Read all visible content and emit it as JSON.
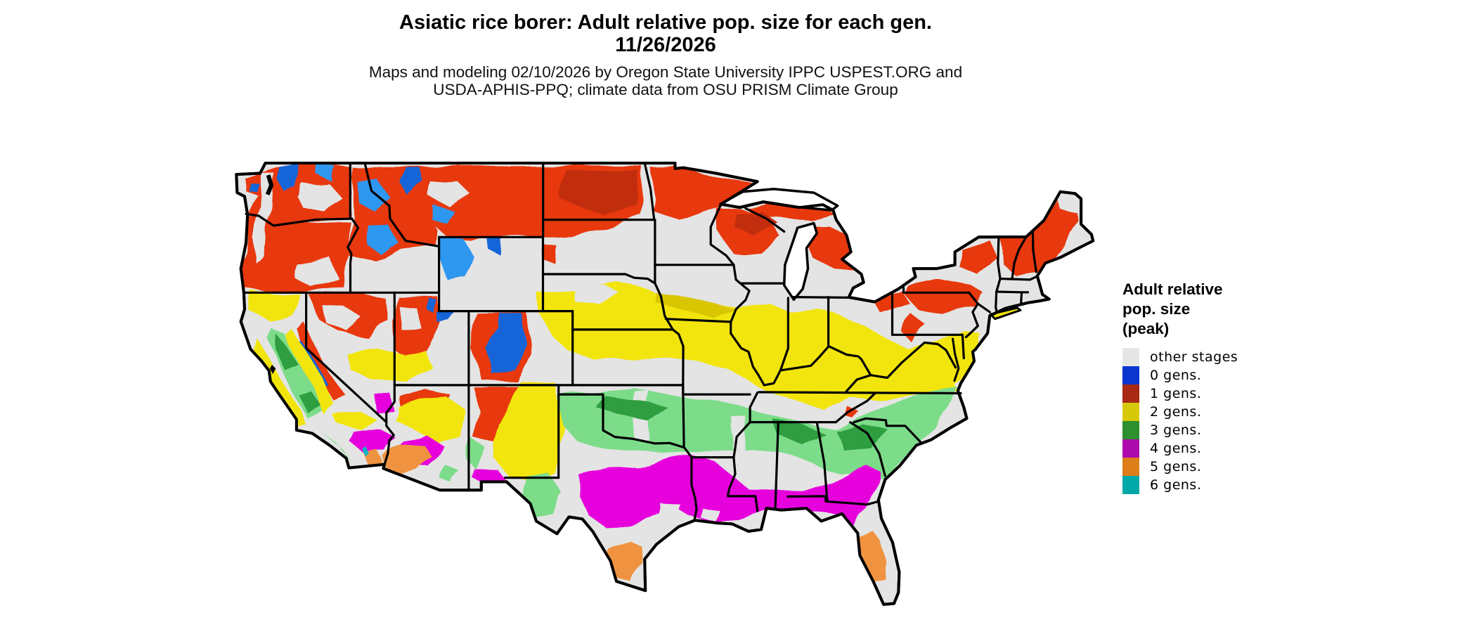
{
  "title": {
    "line1": "Asiatic rice borer: Adult relative pop. size for each gen.",
    "line2": "11/26/2026"
  },
  "subtitle": {
    "line1": "Maps and modeling 02/10/2026 by Oregon State University IPPC USPEST.ORG and",
    "line2": "USDA-APHIS-PPQ; climate data from OSU PRISM Climate Group"
  },
  "legend": {
    "title_line1": "Adult relative",
    "title_line2": "pop. size",
    "title_line3": "(peak)",
    "items": [
      {
        "label": "other stages",
        "color": "#e6e6e6"
      },
      {
        "label": "0 gens.",
        "color": "#0a35cf"
      },
      {
        "label": "1 gens.",
        "color": "#a82a15"
      },
      {
        "label": "2 gens.",
        "color": "#d6c90a"
      },
      {
        "label": "3 gens.",
        "color": "#2d8f2d"
      },
      {
        "label": "4 gens.",
        "color": "#ad0aad"
      },
      {
        "label": "5 gens.",
        "color": "#de7e18"
      },
      {
        "label": "6 gens.",
        "color": "#00a8a8"
      }
    ]
  },
  "map_palette": {
    "land": "#e4e4e4",
    "water": "#ffffff",
    "outline": "#000000",
    "red": "#e8380d",
    "darkred": "#c22d10",
    "blue": "#1565d8",
    "lightblue": "#2f97f0",
    "yellow": "#f2e50a",
    "darkyellow": "#d9c606",
    "green": "#7ddc8a",
    "darkgreen": "#2f9e41",
    "magenta": "#e606dc",
    "orange": "#f09340",
    "teal": "#10b8c8"
  }
}
